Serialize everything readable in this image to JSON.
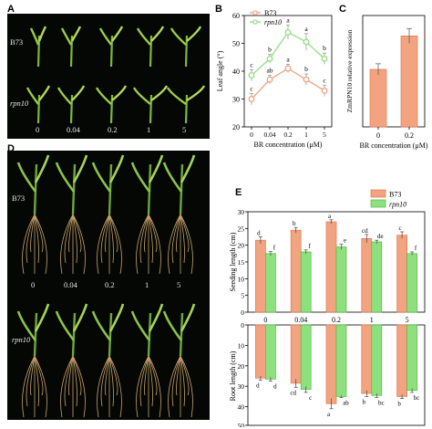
{
  "panels": {
    "A": "A",
    "B": "B",
    "C": "C",
    "D": "D",
    "E": "E"
  },
  "genotypes": {
    "wt": "B73",
    "mut": "rpn10"
  },
  "concentrations": [
    "0",
    "0.04",
    "0.2",
    "1",
    "5"
  ],
  "photo_a": {
    "row1": "B73",
    "row2": "rpn10",
    "conc": [
      "0",
      "0.04",
      "0.2",
      "1",
      "5"
    ]
  },
  "photo_d": {
    "row1": "B73",
    "row2": "rpn10",
    "conc": [
      "0",
      "0.04",
      "0.2",
      "1",
      "5"
    ]
  },
  "colors": {
    "wt": "#f2a37f",
    "mut": "#8ee07e",
    "wt_edge": "#e07a52",
    "mut_edge": "#4fbf43"
  },
  "chart_data": [
    {
      "id": "B",
      "type": "line",
      "ylabel": "Leaf angle (°)",
      "xlabel": "BR concentration (μM)",
      "categories": [
        "0",
        "0.04",
        "0.2",
        "1",
        "5"
      ],
      "ylim": [
        20,
        60
      ],
      "yticks": [
        20,
        30,
        40,
        50,
        60
      ],
      "legend": [
        "B73",
        "rpn10"
      ],
      "series": [
        {
          "name": "B73",
          "values": [
            30,
            37,
            41,
            37,
            33
          ],
          "errors": [
            2,
            1.5,
            1.5,
            2,
            2
          ],
          "labels": [
            "c",
            "ab",
            "a",
            "b",
            "c"
          ]
        },
        {
          "name": "rpn10",
          "values": [
            38.5,
            44.5,
            54,
            50.5,
            44.5
          ],
          "errors": [
            2,
            1.5,
            2.5,
            3,
            2
          ],
          "labels": [
            "c",
            "b",
            "a",
            "a",
            "b"
          ]
        }
      ]
    },
    {
      "id": "C",
      "type": "bar",
      "ylabel": "ZmRPN10 relative expression",
      "xlabel": "BR concentration (μM)",
      "categories": [
        "0",
        "0.2"
      ],
      "ylim": [
        0,
        60
      ],
      "values": [
        31,
        49
      ],
      "errors": [
        3,
        4
      ]
    },
    {
      "id": "E",
      "type": "bar",
      "categories": [
        "0",
        "0.04",
        "0.2",
        "1",
        "5"
      ],
      "legend": [
        "B73",
        "rpn10"
      ],
      "top": {
        "ylabel": "Seeding length (cm)",
        "ylim": [
          0,
          30
        ],
        "yticks": [
          0,
          5,
          10,
          15,
          20,
          25,
          30
        ],
        "series": [
          {
            "name": "B73",
            "values": [
              21.5,
              24.5,
              27,
              22,
              23
            ],
            "errors": [
              1,
              0.8,
              0.6,
              1.2,
              1
            ],
            "labels": [
              "d",
              "b",
              "a",
              "cd",
              "c"
            ]
          },
          {
            "name": "rpn10",
            "values": [
              17.5,
              18,
              19.5,
              21,
              17.5
            ],
            "errors": [
              0.6,
              0.6,
              0.8,
              0.5,
              0.5
            ],
            "labels": [
              "f",
              "f",
              "e",
              "de",
              "f"
            ]
          }
        ]
      },
      "bottom": {
        "ylabel": "Root length (cm)",
        "ylim": [
          0,
          -50
        ],
        "yticks": [
          0,
          -10,
          -20,
          -30,
          -40,
          -50
        ],
        "yticklabels": [
          "0",
          "10",
          "20",
          "30",
          "40",
          "50"
        ],
        "series": [
          {
            "name": "B73",
            "values": [
              -26,
              -28.5,
              -38.5,
              -33.5,
              -35
            ],
            "errors": [
              1,
              2,
              2.5,
              1.5,
              1
            ],
            "labels": [
              "d",
              "cd",
              "a",
              "b",
              "b"
            ]
          },
          {
            "name": "rpn10",
            "values": [
              -26.5,
              -31.5,
              -35,
              -34.5,
              -32
            ],
            "errors": [
              1,
              1.5,
              0.5,
              1,
              1
            ],
            "labels": [
              "d",
              "c",
              "ab",
              "bc",
              "bc"
            ]
          }
        ]
      }
    }
  ]
}
